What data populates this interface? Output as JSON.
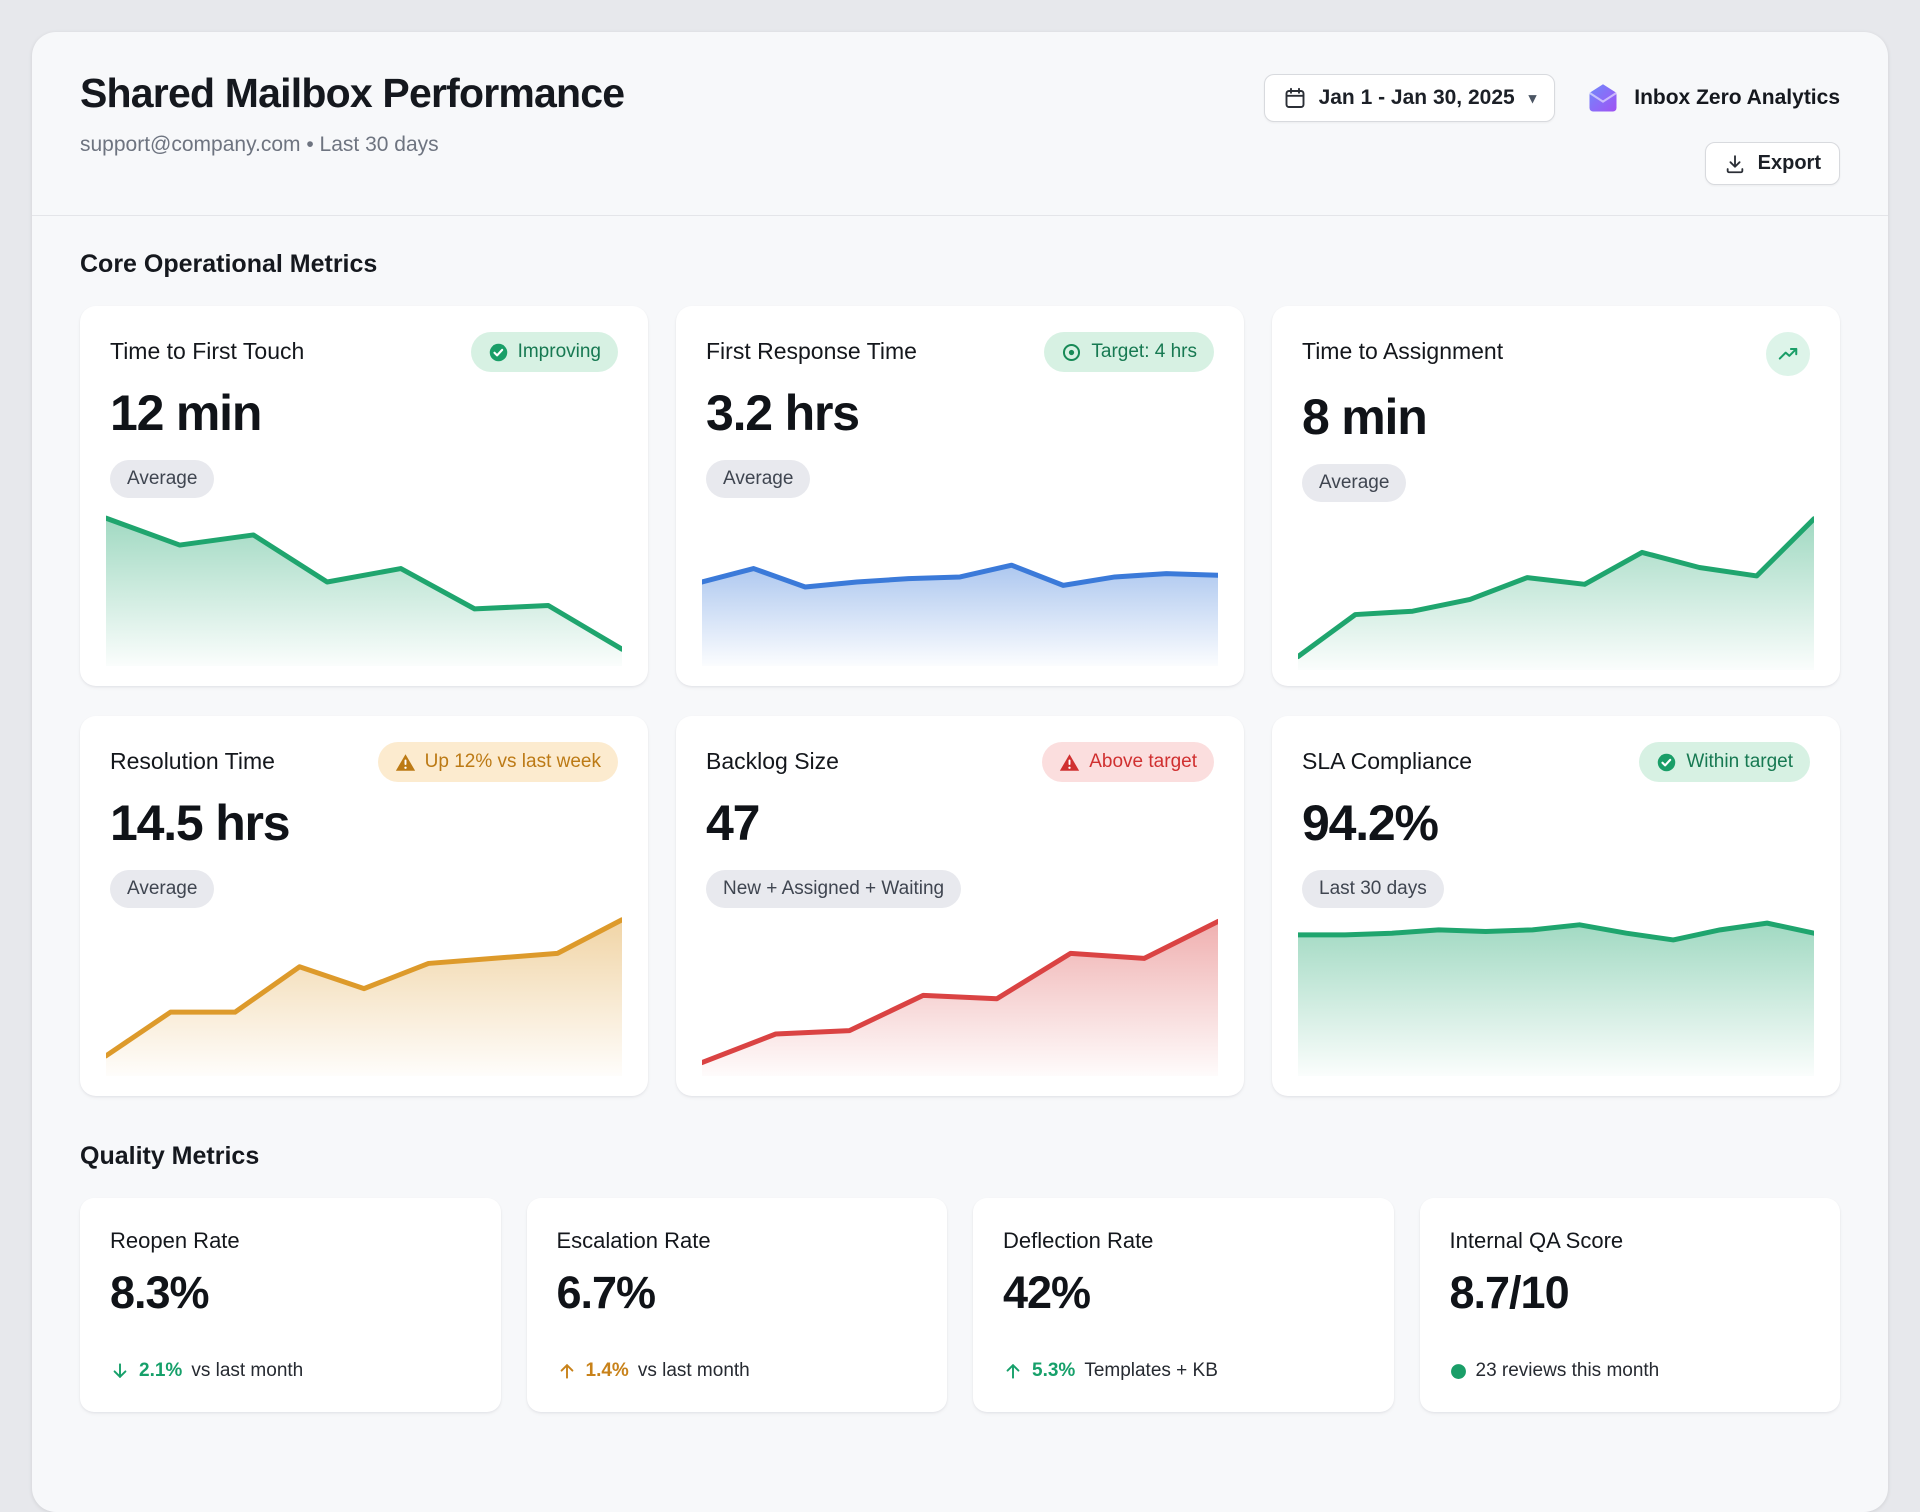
{
  "header": {
    "title": "Shared Mailbox Performance",
    "subtitle": "support@company.com • Last 30 days",
    "date_range": "Jan 1 - Jan 30, 2025",
    "brand": "Inbox Zero Analytics",
    "export_label": "Export",
    "icons": {
      "date": "calendar-icon",
      "date_caret": "chevron-down-icon",
      "brand": "inbox-zero-logo",
      "export": "download-icon"
    }
  },
  "sections": {
    "core": "Core Operational Metrics",
    "quality": "Quality Metrics"
  },
  "colors": {
    "green": "#1fa56e",
    "blue": "#3b7ad9",
    "amber": "#dd9a2b",
    "red": "#da4343",
    "badge_green_bg": "#d7f1e3",
    "badge_amber_bg": "#fcebcf",
    "badge_red_bg": "#fbdede"
  },
  "cards": [
    {
      "title": "Time to First Touch",
      "value": "12 min",
      "tag": "Average",
      "badge": {
        "icon": "check-circle",
        "label": "Improving",
        "style": "green"
      }
    },
    {
      "title": "First Response Time",
      "value": "3.2 hrs",
      "tag": "Average",
      "badge": {
        "icon": "target",
        "label": "Target: 4 hrs",
        "style": "green"
      }
    },
    {
      "title": "Time to Assignment",
      "value": "8 min",
      "tag": "Average",
      "badge": {
        "icon": "trend-up",
        "label": "",
        "style": "chip"
      }
    },
    {
      "title": "Resolution Time",
      "value": "14.5 hrs",
      "tag": "Average",
      "badge": {
        "icon": "warning",
        "label": "Up 12% vs last week",
        "style": "amber"
      }
    },
    {
      "title": "Backlog Size",
      "value": "47",
      "tag": "New + Assigned + Waiting",
      "badge": {
        "icon": "warning",
        "label": "Above target",
        "style": "red"
      }
    },
    {
      "title": "SLA Compliance",
      "value": "94.2%",
      "tag": "Last 30 days",
      "badge": {
        "icon": "check-circle",
        "label": "Within target",
        "style": "green"
      }
    }
  ],
  "chart_data": [
    {
      "type": "area",
      "title": "Time to First Touch sparkline (declining)",
      "color": "#1fa56e",
      "ylim": [
        0,
        100
      ],
      "values": [
        88,
        72,
        78,
        50,
        58,
        34,
        36,
        10
      ]
    },
    {
      "type": "area",
      "title": "First Response Time sparkline (flat)",
      "color": "#3b7ad9",
      "ylim": [
        0,
        100
      ],
      "values": [
        50,
        58,
        47,
        50,
        52,
        53,
        60,
        48,
        53,
        55,
        54
      ]
    },
    {
      "type": "area",
      "title": "Time to Assignment sparkline (rising)",
      "color": "#1fa56e",
      "ylim": [
        0,
        100
      ],
      "values": [
        8,
        33,
        35,
        42,
        55,
        51,
        70,
        61,
        56,
        90
      ]
    },
    {
      "type": "area",
      "title": "Resolution Time sparkline (rising)",
      "color": "#dd9a2b",
      "ylim": [
        0,
        100
      ],
      "values": [
        12,
        38,
        38,
        65,
        52,
        67,
        70,
        73,
        93
      ]
    },
    {
      "type": "area",
      "title": "Backlog Size sparkline (rising steps)",
      "color": "#da4343",
      "ylim": [
        0,
        100
      ],
      "values": [
        8,
        25,
        27,
        48,
        46,
        73,
        70,
        92
      ]
    },
    {
      "type": "area",
      "title": "SLA Compliance sparkline (high flat)",
      "color": "#1fa56e",
      "ylim": [
        0,
        100
      ],
      "values": [
        84,
        84,
        85,
        87,
        86,
        87,
        90,
        85,
        81,
        87,
        91,
        85
      ]
    }
  ],
  "quality": {
    "cards": [
      {
        "title": "Reopen Rate",
        "value": "8.3%",
        "delta": {
          "icon": "arrow-down",
          "accent": "#16a06a",
          "value": "2.1%",
          "text": "vs last month"
        }
      },
      {
        "title": "Escalation Rate",
        "value": "6.7%",
        "delta": {
          "icon": "arrow-up",
          "accent": "#c8821a",
          "value": "1.4%",
          "text": "vs last month"
        }
      },
      {
        "title": "Deflection Rate",
        "value": "42%",
        "delta": {
          "icon": "arrow-up",
          "accent": "#16a06a",
          "value": "5.3%",
          "text": "Templates + KB"
        }
      },
      {
        "title": "Internal QA Score",
        "value": "8.7/10",
        "delta": {
          "icon": "dot",
          "accent": "#16a06a",
          "value": "",
          "text": "23 reviews this month"
        }
      }
    ]
  }
}
